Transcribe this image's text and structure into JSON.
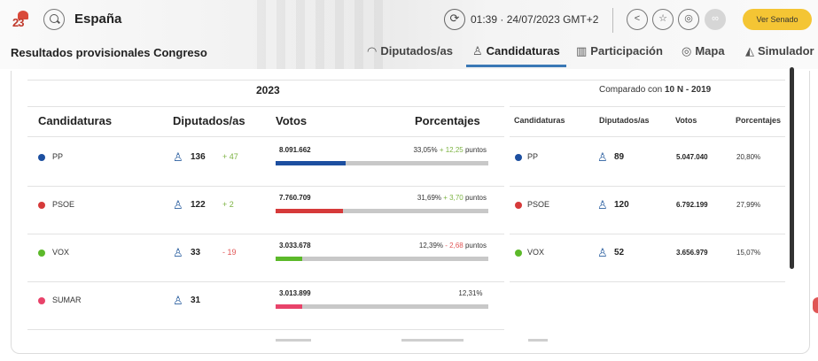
{
  "header": {
    "region": "España",
    "time_info": "01:39 · 24/07/2023 GMT+2",
    "senado_label": "Ver Senado",
    "page_title": "Resultados provisionales Congreso",
    "nav": [
      {
        "label": "Diputados/as"
      },
      {
        "label": "Candidaturas"
      },
      {
        "label": "Participación"
      },
      {
        "label": "Mapa"
      },
      {
        "label": "Simulador"
      }
    ]
  },
  "icons": {
    "logo": "23j-logo-icon",
    "search": "search-icon",
    "refresh": "refresh-icon",
    "share": "share-icon",
    "favorite": "star-icon",
    "embed": "embed-icon",
    "expand": "expand-icon"
  },
  "section": {
    "year": "2023",
    "compare_prefix": "Comparado con",
    "compare_target": "10 N - 2019"
  },
  "columns": {
    "candidaturas": "Candidaturas",
    "diputados": "Diputados/as",
    "votos": "Votos",
    "porcentajes": "Porcentajes"
  },
  "rows": [
    {
      "party": "PP",
      "color": "#1d4fa0",
      "seats": "136",
      "seat_change": "+ 47",
      "seat_change_color": "#7cb342",
      "votes": "8.091.662",
      "share": 0.3305,
      "pct": "33,05%",
      "pct_change": "+ 12,25",
      "pct_change_color": "#7cb342",
      "pct_unit": "puntos",
      "prev_seats": "89",
      "prev_votes": "5.047.040",
      "prev_pct": "20,80%"
    },
    {
      "party": "PSOE",
      "color": "#d63a3a",
      "seats": "122",
      "seat_change": "+ 2",
      "seat_change_color": "#7cb342",
      "votes": "7.760.709",
      "share": 0.3169,
      "pct": "31,69%",
      "pct_change": "+ 3,70",
      "pct_change_color": "#7cb342",
      "pct_unit": "puntos",
      "prev_seats": "120",
      "prev_votes": "6.792.199",
      "prev_pct": "27,99%"
    },
    {
      "party": "VOX",
      "color": "#5cb92a",
      "seats": "33",
      "seat_change": "- 19",
      "seat_change_color": "#e15656",
      "votes": "3.033.678",
      "share": 0.1239,
      "pct": "12,39%",
      "pct_change": "- 2,68",
      "pct_change_color": "#e15656",
      "pct_unit": "puntos",
      "prev_seats": "52",
      "prev_votes": "3.656.979",
      "prev_pct": "15,07%"
    },
    {
      "party": "SUMAR",
      "color": "#e8436a",
      "seats": "31",
      "seat_change": "",
      "seat_change_color": "#7cb342",
      "votes": "3.013.899",
      "share": 0.1231,
      "pct": "12,31%",
      "pct_change": "",
      "pct_change_color": "#7cb342",
      "pct_unit": "",
      "prev_seats": "",
      "prev_votes": "",
      "prev_pct": ""
    }
  ]
}
